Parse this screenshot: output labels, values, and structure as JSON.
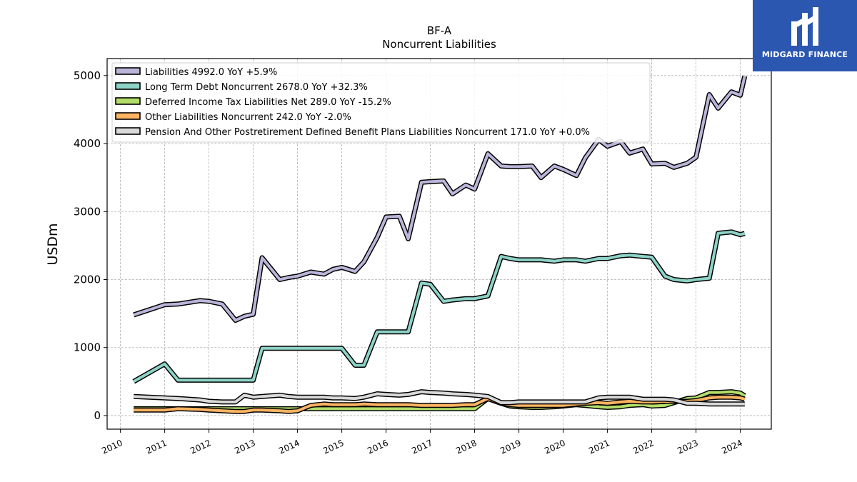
{
  "chart_data": {
    "type": "line",
    "title": "BF-A",
    "subtitle": "Noncurrent  Liabilities",
    "xlabel": "",
    "ylabel": "USDm",
    "xlim": [
      2009.7,
      2024.7
    ],
    "ylim": [
      -200,
      5250
    ],
    "yticks": [
      0,
      1000,
      2000,
      3000,
      4000,
      5000
    ],
    "xticks": [
      "2010",
      "2011",
      "2012",
      "2013",
      "2014",
      "2015",
      "2016",
      "2017",
      "2018",
      "2019",
      "2020",
      "2021",
      "2022",
      "2023",
      "2024"
    ],
    "grid": true,
    "legend_position": "upper-left",
    "x": [
      2010.3,
      2011.0,
      2011.3,
      2011.8,
      2012.0,
      2012.3,
      2012.6,
      2012.8,
      2013.0,
      2013.2,
      2013.6,
      2013.8,
      2014.0,
      2014.3,
      2014.6,
      2014.8,
      2015.0,
      2015.3,
      2015.5,
      2015.8,
      2016.0,
      2016.3,
      2016.5,
      2016.8,
      2017.0,
      2017.3,
      2017.5,
      2017.8,
      2018.0,
      2018.3,
      2018.6,
      2018.8,
      2019.0,
      2019.3,
      2019.5,
      2019.8,
      2020.0,
      2020.3,
      2020.5,
      2020.8,
      2021.0,
      2021.3,
      2021.5,
      2021.8,
      2022.0,
      2022.3,
      2022.5,
      2022.8,
      2023.0,
      2023.3,
      2023.5,
      2023.8,
      2024.0,
      2024.1
    ],
    "series": [
      {
        "name": "Liabilities  4992.0 YoY +5.9%",
        "color": "#bcb5d9",
        "values": [
          1480,
          1630,
          1640,
          1690,
          1680,
          1640,
          1400,
          1460,
          1490,
          2320,
          2000,
          2030,
          2050,
          2110,
          2080,
          2150,
          2180,
          2120,
          2260,
          2620,
          2920,
          2930,
          2600,
          3430,
          3440,
          3450,
          3260,
          3390,
          3330,
          3850,
          3670,
          3660,
          3660,
          3670,
          3500,
          3670,
          3620,
          3530,
          3790,
          4060,
          3960,
          4030,
          3860,
          3920,
          3700,
          3710,
          3650,
          3710,
          3800,
          4720,
          4520,
          4760,
          4710,
          4992
        ]
      },
      {
        "name": "Long Term Debt Noncurrent  2678.0 YoY +32.3%",
        "color": "#8dd3c7",
        "values": [
          500,
          760,
          520,
          520,
          520,
          520,
          520,
          520,
          520,
          990,
          990,
          990,
          990,
          990,
          990,
          990,
          990,
          740,
          740,
          1230,
          1230,
          1230,
          1230,
          1950,
          1930,
          1680,
          1700,
          1720,
          1720,
          1760,
          2340,
          2310,
          2290,
          2290,
          2290,
          2270,
          2290,
          2290,
          2270,
          2310,
          2310,
          2350,
          2360,
          2340,
          2330,
          2050,
          2000,
          1980,
          2000,
          2020,
          2680,
          2700,
          2660,
          2678
        ]
      },
      {
        "name": "Deferred Income Tax Liabilities Net  289.0 YoY -15.2%",
        "color": "#b3de69",
        "values": [
          100,
          100,
          100,
          100,
          100,
          100,
          100,
          100,
          100,
          100,
          100,
          100,
          100,
          100,
          100,
          100,
          100,
          100,
          100,
          100,
          100,
          100,
          100,
          100,
          100,
          100,
          100,
          100,
          100,
          250,
          180,
          140,
          130,
          120,
          120,
          130,
          140,
          160,
          150,
          130,
          120,
          130,
          150,
          160,
          140,
          150,
          190,
          250,
          260,
          340,
          340,
          350,
          330,
          289
        ]
      },
      {
        "name": "Other Liabilities Noncurrent  242.0 YoY -2.0%",
        "color": "#fdb462",
        "values": [
          80,
          80,
          100,
          90,
          80,
          70,
          60,
          60,
          80,
          80,
          70,
          60,
          70,
          150,
          170,
          160,
          160,
          160,
          170,
          160,
          160,
          160,
          160,
          150,
          150,
          150,
          150,
          160,
          160,
          250,
          180,
          160,
          150,
          150,
          150,
          150,
          150,
          170,
          180,
          190,
          180,
          200,
          210,
          200,
          200,
          210,
          210,
          210,
          220,
          260,
          270,
          270,
          260,
          242
        ]
      },
      {
        "name": "Pension And Other Postretirement Defined Benefit Plans Liabilities Noncurrent  171.0 YoY +0.0%",
        "color": "#d9d9d9",
        "values": [
          280,
          260,
          250,
          230,
          210,
          200,
          200,
          300,
          270,
          280,
          300,
          280,
          270,
          270,
          270,
          260,
          260,
          250,
          270,
          320,
          310,
          300,
          310,
          350,
          340,
          330,
          320,
          310,
          300,
          280,
          190,
          190,
          200,
          200,
          200,
          200,
          200,
          200,
          200,
          260,
          270,
          270,
          270,
          240,
          240,
          240,
          230,
          180,
          180,
          170,
          170,
          170,
          171,
          171
        ]
      }
    ]
  },
  "logo": {
    "name": "MIDGARD FINANCE"
  }
}
